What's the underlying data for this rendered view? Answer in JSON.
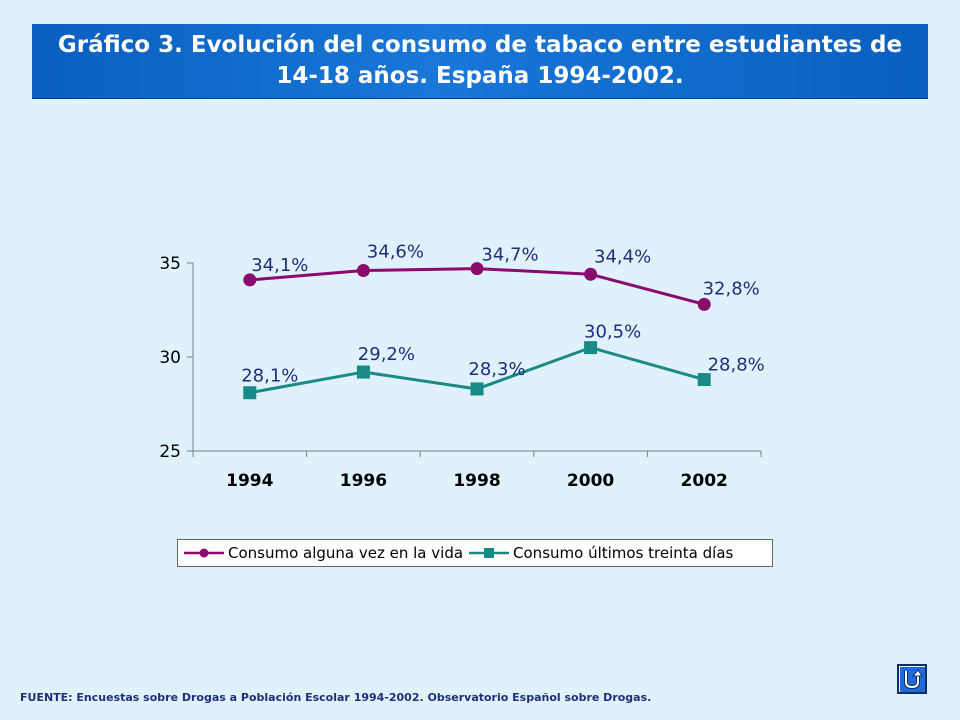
{
  "title_line1": "Gráfico 3. Evolución del consumo de tabaco entre estudiantes de",
  "title_line2": "14-18 años. España 1994-2002.",
  "chart_data": {
    "type": "line",
    "categories": [
      "1994",
      "1996",
      "1998",
      "2000",
      "2002"
    ],
    "series": [
      {
        "name": "Consumo alguna vez en la vida",
        "values": [
          34.1,
          34.6,
          34.7,
          34.4,
          32.8
        ],
        "labels": [
          "34,1%",
          "34,6%",
          "34,7%",
          "34,4%",
          "32,8%"
        ],
        "color": "#8b0a6e",
        "marker": "circle"
      },
      {
        "name": "Consumo últimos treinta días",
        "values": [
          28.1,
          29.2,
          28.3,
          30.5,
          28.8
        ],
        "labels": [
          "28,1%",
          "29,2%",
          "28,3%",
          "30,5%",
          "28,8%"
        ],
        "color": "#1a8a86",
        "marker": "square"
      }
    ],
    "ylim": [
      25,
      35
    ],
    "yticks": [
      25,
      30,
      35
    ],
    "grid": false,
    "legend": "bottom"
  },
  "source": "FUENTE: Encuestas sobre Drogas a Población Escolar 1994-2002.  Observatorio Español sobre Drogas.",
  "back_icon": "u-turn-icon"
}
